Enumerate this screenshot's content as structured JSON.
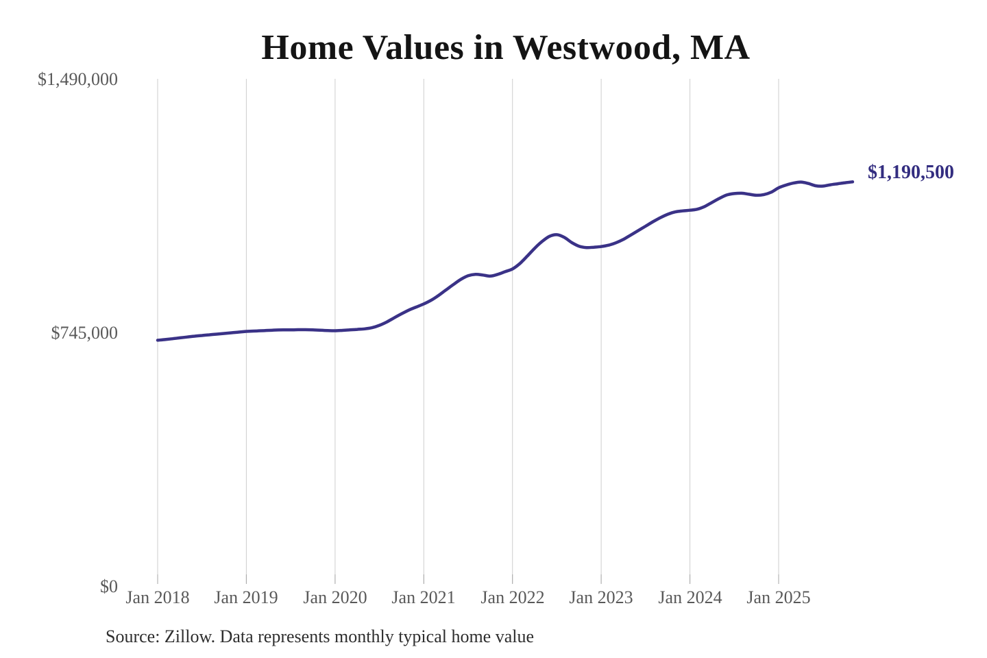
{
  "title": "Home Values in Westwood, MA",
  "source_note": "Source: Zillow. Data represents monthly typical home value",
  "chart_data": {
    "type": "line",
    "title": "Home Values in Westwood, MA",
    "series_name": "Monthly typical home value",
    "line_color": "#3a3287",
    "grid": "vertical-only",
    "grid_color": "#cdcdcd",
    "ylim": [
      0,
      1490000
    ],
    "y_tick_values": [
      0,
      745000,
      1490000
    ],
    "y_tick_labels": [
      "$0",
      "$745,000",
      "$1,490,000"
    ],
    "x_tick_labels": [
      "Jan 2018",
      "Jan 2019",
      "Jan 2020",
      "Jan 2021",
      "Jan 2022",
      "Jan 2023",
      "Jan 2024",
      "Jan 2025"
    ],
    "end_label": "$1,190,500",
    "latest_value": 1190500,
    "x_start": "2018-01",
    "x_end": "2025-11",
    "months": [
      "2018-01",
      "2018-02",
      "2018-03",
      "2018-04",
      "2018-05",
      "2018-06",
      "2018-07",
      "2018-08",
      "2018-09",
      "2018-10",
      "2018-11",
      "2018-12",
      "2019-01",
      "2019-02",
      "2019-03",
      "2019-04",
      "2019-05",
      "2019-06",
      "2019-07",
      "2019-08",
      "2019-09",
      "2019-10",
      "2019-11",
      "2019-12",
      "2020-01",
      "2020-02",
      "2020-03",
      "2020-04",
      "2020-05",
      "2020-06",
      "2020-07",
      "2020-08",
      "2020-09",
      "2020-10",
      "2020-11",
      "2020-12",
      "2021-01",
      "2021-02",
      "2021-03",
      "2021-04",
      "2021-05",
      "2021-06",
      "2021-07",
      "2021-08",
      "2021-09",
      "2021-10",
      "2021-11",
      "2021-12",
      "2022-01",
      "2022-02",
      "2022-03",
      "2022-04",
      "2022-05",
      "2022-06",
      "2022-07",
      "2022-08",
      "2022-09",
      "2022-10",
      "2022-11",
      "2022-12",
      "2023-01",
      "2023-02",
      "2023-03",
      "2023-04",
      "2023-05",
      "2023-06",
      "2023-07",
      "2023-08",
      "2023-09",
      "2023-10",
      "2023-11",
      "2023-12",
      "2024-01",
      "2024-02",
      "2024-03",
      "2024-04",
      "2024-05",
      "2024-06",
      "2024-07",
      "2024-08",
      "2024-09",
      "2024-10",
      "2024-11",
      "2024-12",
      "2025-01",
      "2025-02",
      "2025-03",
      "2025-04",
      "2025-05",
      "2025-06",
      "2025-07",
      "2025-08",
      "2025-09",
      "2025-10",
      "2025-11"
    ],
    "values": [
      724000,
      726000,
      728500,
      731000,
      733500,
      736000,
      738000,
      740000,
      742000,
      744000,
      746000,
      748000,
      750000,
      751000,
      752000,
      753000,
      754000,
      754500,
      754500,
      755000,
      755000,
      754500,
      753500,
      752500,
      752000,
      753000,
      754500,
      756000,
      757500,
      761000,
      768000,
      778000,
      790000,
      802000,
      813000,
      822000,
      831000,
      842000,
      856000,
      872000,
      888000,
      903000,
      914000,
      918000,
      916000,
      913000,
      918000,
      926000,
      934000,
      950000,
      972000,
      995000,
      1015000,
      1030000,
      1035000,
      1027000,
      1012000,
      1001000,
      997000,
      998000,
      1000000,
      1004000,
      1011000,
      1021000,
      1034000,
      1047000,
      1060000,
      1073000,
      1085000,
      1095000,
      1102000,
      1105000,
      1107000,
      1110000,
      1118000,
      1130000,
      1142000,
      1152000,
      1156000,
      1157000,
      1154000,
      1151000,
      1153000,
      1160000,
      1173000,
      1181000,
      1187000,
      1190000,
      1186000,
      1179000,
      1178000,
      1182000,
      1185000,
      1188000,
      1190500
    ]
  }
}
